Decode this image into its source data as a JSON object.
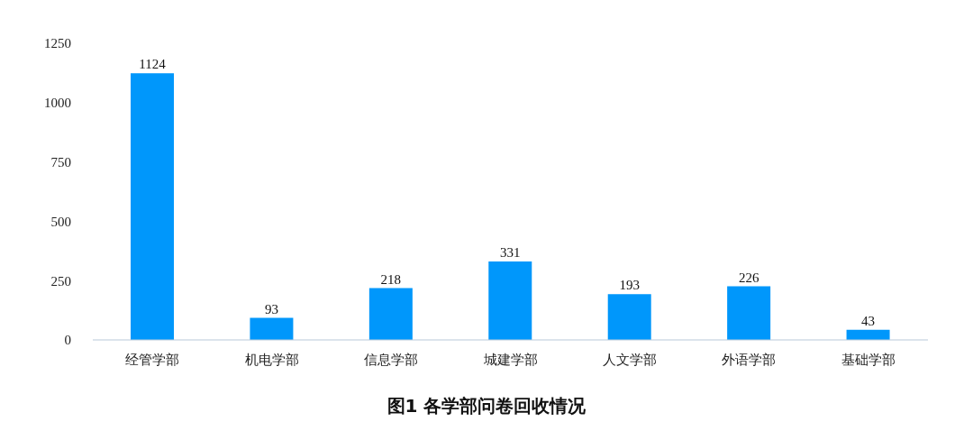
{
  "chart_data": {
    "type": "bar",
    "title": "图1  各学部问卷回收情况",
    "categories": [
      "经管学部",
      "机电学部",
      "信息学部",
      "城建学部",
      "人文学部",
      "外语学部",
      "基础学部"
    ],
    "values": [
      1124,
      93,
      218,
      331,
      193,
      226,
      43
    ],
    "color": "#0097fb",
    "ylim": [
      0,
      1250
    ],
    "yticks": [
      0,
      250,
      500,
      750,
      1000,
      1250
    ],
    "grid": false,
    "data_labels": true
  }
}
